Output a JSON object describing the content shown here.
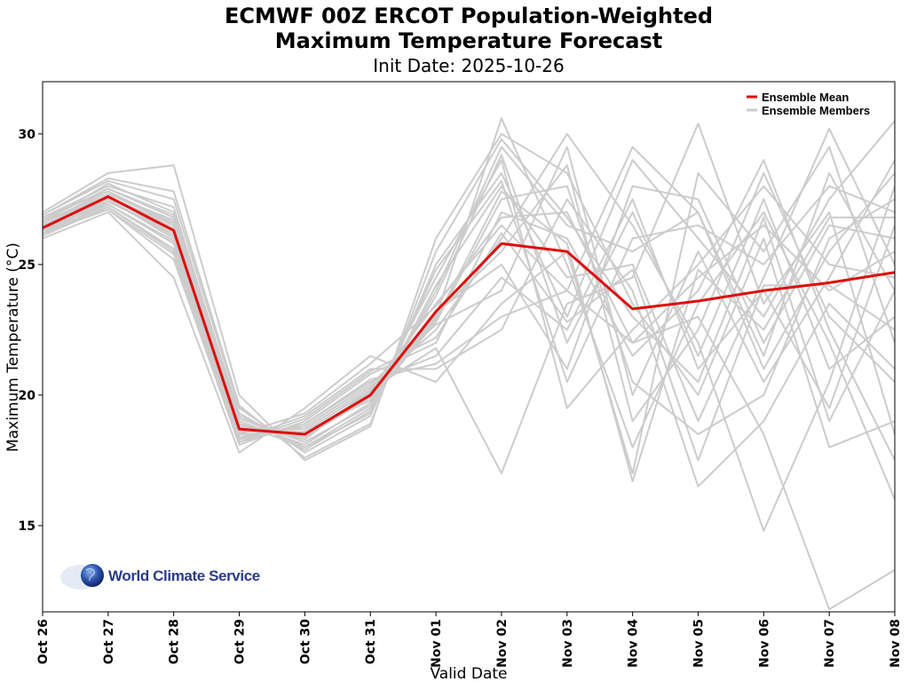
{
  "chart_data": {
    "type": "line",
    "title": "ECMWF 00Z ERCOT Population-Weighted",
    "title_line2": "Maximum Temperature Forecast",
    "subtitle": "Init Date: 2025-10-26",
    "xlabel": "Valid Date",
    "ylabel": "Maximum Temperature (°C)",
    "categories": [
      "Oct 26",
      "Oct 27",
      "Oct 28",
      "Oct 29",
      "Oct 30",
      "Oct 31",
      "Nov 01",
      "Nov 02",
      "Nov 03",
      "Nov 04",
      "Nov 05",
      "Nov 06",
      "Nov 07",
      "Nov 08"
    ],
    "ylim": [
      11.7,
      32
    ],
    "yticks": [
      15,
      20,
      25,
      30
    ],
    "grid": false,
    "legend_position": "top-right",
    "series": [
      {
        "name": "Ensemble Mean",
        "color": "#dd0d0d",
        "values": [
          26.4,
          27.6,
          26.3,
          18.7,
          18.5,
          20.0,
          23.2,
          25.8,
          25.5,
          23.3,
          23.6,
          24.0,
          24.3,
          24.7
        ]
      },
      {
        "name": "Ensemble Members",
        "color": "#cccccc",
        "members": [
          [
            26.6,
            27.8,
            26.5,
            18.9,
            18.3,
            20.2,
            23.5,
            26.5,
            24.0,
            22.0,
            24.5,
            26.5,
            24.0,
            25.5
          ],
          [
            26.3,
            27.5,
            26.0,
            18.5,
            18.6,
            19.8,
            22.8,
            27.5,
            28.0,
            20.5,
            18.5,
            20.0,
            26.0,
            27.5
          ],
          [
            26.8,
            28.0,
            27.2,
            19.2,
            18.0,
            19.5,
            24.0,
            29.5,
            26.5,
            25.5,
            27.0,
            21.5,
            28.5,
            24.0
          ],
          [
            26.1,
            27.2,
            25.5,
            18.2,
            18.9,
            20.5,
            21.5,
            24.5,
            22.5,
            27.5,
            21.0,
            24.0,
            19.5,
            26.5
          ],
          [
            26.5,
            27.7,
            26.7,
            18.7,
            18.4,
            20.0,
            23.0,
            30.6,
            25.0,
            18.0,
            23.5,
            27.0,
            22.0,
            16.0
          ],
          [
            26.9,
            28.2,
            27.5,
            19.5,
            17.8,
            19.2,
            25.0,
            28.5,
            23.0,
            29.0,
            26.0,
            23.0,
            27.5,
            30.5
          ],
          [
            26.2,
            27.3,
            25.8,
            18.3,
            19.2,
            21.0,
            21.0,
            22.5,
            27.5,
            24.0,
            16.5,
            19.0,
            23.5,
            21.0
          ],
          [
            26.7,
            27.9,
            26.9,
            19.0,
            18.1,
            19.7,
            24.5,
            29.0,
            19.5,
            22.5,
            25.0,
            28.0,
            25.0,
            24.5
          ],
          [
            26.4,
            27.4,
            26.2,
            18.6,
            18.7,
            20.3,
            22.5,
            26.0,
            30.0,
            26.5,
            22.0,
            14.8,
            20.5,
            28.0
          ],
          [
            26.0,
            27.0,
            24.5,
            17.8,
            19.5,
            21.5,
            20.5,
            23.5,
            25.5,
            17.0,
            28.5,
            25.5,
            29.5,
            22.0
          ],
          [
            27.0,
            28.5,
            28.8,
            20.0,
            17.5,
            18.8,
            26.0,
            30.0,
            28.5,
            23.5,
            20.0,
            26.0,
            18.0,
            19.0
          ],
          [
            26.5,
            27.6,
            26.4,
            18.8,
            18.5,
            20.1,
            23.2,
            25.0,
            21.0,
            28.0,
            27.5,
            22.0,
            26.5,
            26.0
          ],
          [
            26.3,
            27.1,
            25.2,
            18.1,
            19.0,
            20.8,
            22.0,
            27.0,
            26.0,
            21.5,
            24.0,
            29.0,
            22.5,
            17.5
          ],
          [
            26.6,
            28.1,
            27.0,
            19.3,
            17.9,
            19.4,
            24.2,
            28.0,
            24.5,
            25.0,
            19.0,
            24.5,
            30.2,
            25.0
          ],
          [
            26.2,
            27.5,
            26.1,
            18.4,
            18.8,
            20.4,
            22.7,
            24.0,
            29.5,
            20.0,
            25.5,
            20.5,
            24.5,
            29.0
          ],
          [
            26.8,
            27.8,
            26.6,
            19.1,
            18.2,
            19.6,
            23.8,
            29.2,
            22.0,
            27.0,
            21.5,
            27.5,
            21.0,
            23.0
          ],
          [
            26.4,
            27.3,
            25.9,
            18.6,
            18.6,
            20.2,
            21.8,
            17.0,
            23.5,
            24.5,
            30.4,
            23.5,
            27.0,
            18.5
          ],
          [
            26.1,
            27.4,
            26.3,
            18.5,
            19.3,
            21.2,
            23.4,
            26.8,
            27.0,
            22.0,
            23.0,
            18.5,
            11.8,
            13.3
          ],
          [
            26.7,
            27.9,
            26.8,
            18.9,
            18.0,
            19.3,
            24.8,
            28.2,
            20.5,
            26.0,
            26.5,
            25.0,
            28.0,
            27.0
          ],
          [
            26.5,
            27.6,
            26.5,
            18.7,
            18.5,
            20.0,
            23.1,
            25.5,
            28.8,
            19.0,
            22.5,
            28.5,
            23.0,
            20.5
          ],
          [
            26.3,
            27.2,
            25.6,
            18.3,
            18.9,
            20.6,
            21.2,
            23.0,
            24.0,
            29.5,
            27.0,
            21.0,
            25.5,
            28.5
          ],
          [
            26.9,
            28.3,
            27.8,
            19.6,
            17.6,
            18.9,
            25.5,
            29.8,
            26.8,
            23.0,
            20.5,
            26.8,
            19.0,
            24.0
          ],
          [
            26.6,
            27.7,
            26.6,
            18.8,
            18.4,
            19.9,
            22.9,
            27.8,
            25.8,
            16.7,
            24.8,
            22.5,
            26.8,
            26.8
          ],
          [
            26.2,
            27.1,
            25.4,
            18.2,
            19.1,
            20.9,
            22.2,
            26.2,
            22.8,
            24.8,
            17.5,
            24.2,
            24.2,
            22.5
          ]
        ]
      }
    ]
  },
  "logo": {
    "text": "World Climate Service"
  }
}
